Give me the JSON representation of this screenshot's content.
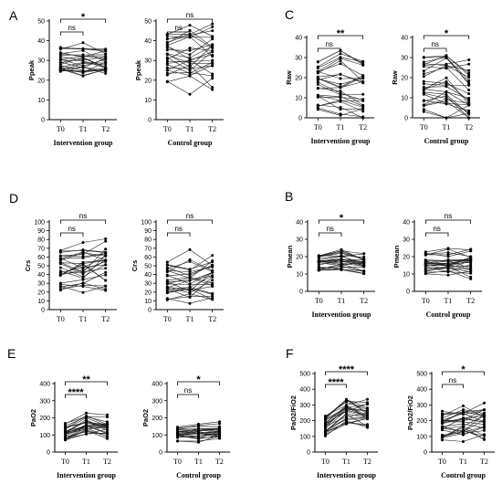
{
  "chart_data": [
    {
      "type": "line",
      "letter": "A",
      "ylabel": "Ppeak",
      "group": "Intervention group",
      "ylim": [
        0,
        50
      ],
      "yticks": [
        0,
        10,
        20,
        30,
        40,
        50
      ],
      "categories": [
        "T0",
        "T1",
        "T2"
      ],
      "baseline": [
        24,
        38
      ],
      "shift": [
        0,
        -1
      ],
      "brackets": [
        {
          "pair": [
            0,
            1
          ],
          "label": "ns"
        },
        {
          "pair": [
            0,
            2
          ],
          "label": "*"
        }
      ]
    },
    {
      "type": "line",
      "letter": "",
      "ylabel": "Ppeak",
      "group": "Control group",
      "ylim": [
        0,
        50
      ],
      "yticks": [
        0,
        10,
        20,
        30,
        40,
        50
      ],
      "categories": [
        "T0",
        "T1",
        "T2"
      ],
      "baseline": [
        18,
        44
      ],
      "shift": [
        0,
        0
      ],
      "brackets": [
        {
          "pair": [
            0,
            1
          ],
          "label": "ns"
        },
        {
          "pair": [
            0,
            2
          ],
          "label": "ns"
        }
      ]
    },
    {
      "type": "line",
      "letter": "C",
      "ylabel": "Raw",
      "group": "Intervention group",
      "ylim": [
        0,
        40
      ],
      "yticks": [
        0,
        10,
        20,
        30,
        40
      ],
      "categories": [
        "T0",
        "T1",
        "T2"
      ],
      "baseline": [
        4,
        28
      ],
      "shift": [
        0,
        -3
      ],
      "brackets": [
        {
          "pair": [
            0,
            1
          ],
          "label": "ns"
        },
        {
          "pair": [
            0,
            2
          ],
          "label": "**"
        }
      ]
    },
    {
      "type": "line",
      "letter": "",
      "ylabel": "Raw",
      "group": "Control group",
      "ylim": [
        0,
        40
      ],
      "yticks": [
        0,
        10,
        20,
        30,
        40
      ],
      "categories": [
        "T0",
        "T1",
        "T2"
      ],
      "baseline": [
        3,
        31
      ],
      "shift": [
        -1,
        -5
      ],
      "brackets": [
        {
          "pair": [
            0,
            1
          ],
          "label": "ns"
        },
        {
          "pair": [
            0,
            2
          ],
          "label": "*"
        }
      ]
    },
    {
      "type": "line",
      "letter": "D",
      "ylabel": "Crs",
      "group": "",
      "ylim": [
        0,
        100
      ],
      "yticks": [
        0,
        10,
        20,
        30,
        40,
        50,
        60,
        70,
        80,
        90,
        100
      ],
      "categories": [
        "T0",
        "T1",
        "T2"
      ],
      "baseline": [
        18,
        68
      ],
      "shift": [
        2,
        5
      ],
      "brackets": [
        {
          "pair": [
            0,
            1
          ],
          "label": "ns"
        },
        {
          "pair": [
            0,
            2
          ],
          "label": "ns"
        }
      ]
    },
    {
      "type": "line",
      "letter": "",
      "ylabel": "Crs",
      "group": "",
      "ylim": [
        0,
        100
      ],
      "yticks": [
        0,
        10,
        20,
        30,
        40,
        50,
        60,
        70,
        80,
        90,
        100
      ],
      "categories": [
        "T0",
        "T1",
        "T2"
      ],
      "baseline": [
        10,
        55
      ],
      "shift": [
        2,
        3
      ],
      "brackets": [
        {
          "pair": [
            0,
            1
          ],
          "label": "ns"
        },
        {
          "pair": [
            0,
            2
          ],
          "label": "ns"
        }
      ]
    },
    {
      "type": "line",
      "letter": "B",
      "ylabel": "Pmean",
      "group": "Intervention group",
      "ylim": [
        0,
        40
      ],
      "yticks": [
        0,
        10,
        20,
        30,
        40
      ],
      "categories": [
        "T0",
        "T1",
        "T2"
      ],
      "baseline": [
        11,
        21
      ],
      "shift": [
        1,
        -1
      ],
      "brackets": [
        {
          "pair": [
            0,
            1
          ],
          "label": "ns"
        },
        {
          "pair": [
            0,
            2
          ],
          "label": "*"
        }
      ]
    },
    {
      "type": "line",
      "letter": "",
      "ylabel": "Pmean",
      "group": "Control group",
      "ylim": [
        0,
        40
      ],
      "yticks": [
        0,
        10,
        20,
        30,
        40
      ],
      "categories": [
        "T0",
        "T1",
        "T2"
      ],
      "baseline": [
        10,
        23
      ],
      "shift": [
        0,
        0
      ],
      "brackets": [
        {
          "pair": [
            0,
            1
          ],
          "label": "ns"
        },
        {
          "pair": [
            0,
            2
          ],
          "label": "ns"
        }
      ]
    },
    {
      "type": "line",
      "letter": "E",
      "ylabel": "PaO2",
      "group": "Intervention group",
      "ylim": [
        0,
        400
      ],
      "yticks": [
        0,
        100,
        200,
        300,
        400
      ],
      "categories": [
        "T0",
        "T1",
        "T2"
      ],
      "baseline": [
        70,
        170
      ],
      "shift": [
        50,
        30
      ],
      "brackets": [
        {
          "pair": [
            0,
            1
          ],
          "label": "****"
        },
        {
          "pair": [
            0,
            2
          ],
          "label": "**"
        }
      ]
    },
    {
      "type": "line",
      "letter": "",
      "ylabel": "PaO2",
      "group": "Control group",
      "ylim": [
        0,
        400
      ],
      "yticks": [
        0,
        100,
        200,
        300,
        400
      ],
      "categories": [
        "T0",
        "T1",
        "T2"
      ],
      "baseline": [
        60,
        150
      ],
      "shift": [
        5,
        15
      ],
      "brackets": [
        {
          "pair": [
            0,
            1
          ],
          "label": "ns"
        },
        {
          "pair": [
            0,
            2
          ],
          "label": "*"
        }
      ]
    },
    {
      "type": "line",
      "letter": "F",
      "ylabel": "PaO2/FiO2",
      "group": "Intervention group",
      "ylim": [
        0,
        500
      ],
      "yticks": [
        0,
        100,
        200,
        300,
        400,
        500
      ],
      "categories": [
        "T0",
        "T1",
        "T2"
      ],
      "baseline": [
        100,
        240
      ],
      "shift": [
        90,
        70
      ],
      "brackets": [
        {
          "pair": [
            0,
            1
          ],
          "label": "****"
        },
        {
          "pair": [
            0,
            2
          ],
          "label": "****"
        }
      ]
    },
    {
      "type": "line",
      "letter": "",
      "ylabel": "PaO2/FiO2",
      "group": "Control group",
      "ylim": [
        0,
        500
      ],
      "yticks": [
        0,
        100,
        200,
        300,
        400,
        500
      ],
      "categories": [
        "T0",
        "T1",
        "T2"
      ],
      "baseline": [
        70,
        260
      ],
      "shift": [
        20,
        30
      ],
      "brackets": [
        {
          "pair": [
            0,
            1
          ],
          "label": "ns"
        },
        {
          "pair": [
            0,
            2
          ],
          "label": "*"
        }
      ]
    }
  ]
}
